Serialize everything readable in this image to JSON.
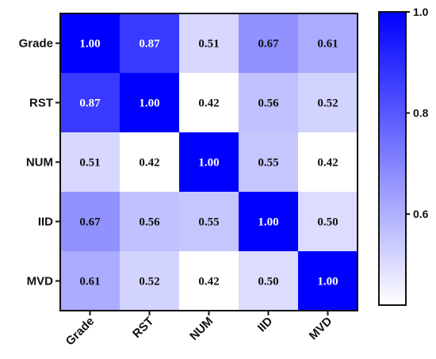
{
  "chart_data": {
    "type": "heatmap",
    "categories": [
      "Grade",
      "RST",
      "NUM",
      "IID",
      "MVD"
    ],
    "matrix": [
      [
        1.0,
        0.87,
        0.51,
        0.67,
        0.61
      ],
      [
        0.87,
        1.0,
        0.42,
        0.56,
        0.52
      ],
      [
        0.51,
        0.42,
        1.0,
        0.55,
        0.42
      ],
      [
        0.67,
        0.56,
        0.55,
        1.0,
        0.5
      ],
      [
        0.61,
        0.52,
        0.42,
        0.5,
        1.0
      ]
    ],
    "value_labels": [
      [
        "1.00",
        "0.87",
        "0.51",
        "0.67",
        "0.61"
      ],
      [
        "0.87",
        "1.00",
        "0.42",
        "0.56",
        "0.52"
      ],
      [
        "0.51",
        "0.42",
        "1.00",
        "0.55",
        "0.42"
      ],
      [
        "0.67",
        "0.56",
        "0.55",
        "1.00",
        "0.50"
      ],
      [
        "0.61",
        "0.52",
        "0.42",
        "0.50",
        "1.00"
      ]
    ],
    "colorbar": {
      "range": [
        0.42,
        1.0
      ],
      "ticks": [
        0.6,
        0.8,
        1.0
      ],
      "tick_labels": [
        "0.6",
        "0.8",
        "1.0"
      ],
      "low_color": "#ffffff",
      "high_color": "#0000ff"
    },
    "title": "",
    "xlabel": "",
    "ylabel": ""
  }
}
